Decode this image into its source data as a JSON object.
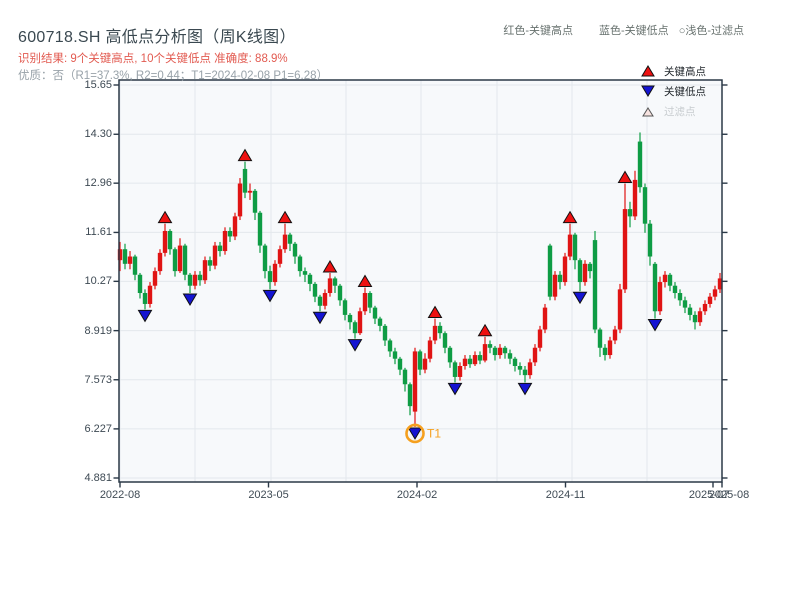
{
  "header": {
    "title": "600718.SH 高低点分析图（周K线图）",
    "subtitle_result": "识别结果: 9个关键高点, 10个关键低点  准确度: 88.9%",
    "subtitle_quality": "优质：否（R1=37.3%, R2=0.44；T1=2024-02-08 P1=6.28）",
    "color_key": {
      "high": "红色-关键高点",
      "low": "蓝色-关键低点",
      "filtered": "○浅色-过滤点"
    }
  },
  "legend": {
    "items": [
      {
        "label": "关键高点",
        "marker": "triangle-up",
        "type": "key-high"
      },
      {
        "label": "关键低点",
        "marker": "triangle-down",
        "type": "key-low"
      },
      {
        "label": "过滤点",
        "marker": "triangle-up-open",
        "type": "filtered"
      }
    ]
  },
  "colors": {
    "candle_up": "#E01414",
    "candle_down": "#0E9C44",
    "marker_high": "#EE1111",
    "marker_low": "#1414D2",
    "marker_edge": "#111111",
    "filtered_fill": "#F7E3E0",
    "filtered_edge": "#555555",
    "t1_orange": "#F5A01E",
    "grid": "#E3E8EC",
    "spine": "#2B3947",
    "plot_bg": "#F7F9FB",
    "tick_label": "#3E4A54"
  },
  "chart_data": {
    "type": "candlestick",
    "symbol": "600718.SH",
    "frequency": "周K线",
    "title": "600718.SH 高低点分析图（周K线图）",
    "key_high_count": 9,
    "key_low_count": 10,
    "accuracy": "88.9%",
    "y_ticks": [
      {
        "label": "15.65",
        "v": 15.65
      },
      {
        "label": "14.30",
        "v": 14.3
      },
      {
        "label": "12.96",
        "v": 12.96
      },
      {
        "label": "11.61",
        "v": 11.61
      },
      {
        "label": "10.27",
        "v": 10.27
      },
      {
        "label": "8.919",
        "v": 8.919
      },
      {
        "label": "7.573",
        "v": 7.573
      },
      {
        "label": "6.227",
        "v": 6.227
      },
      {
        "label": "4.881",
        "v": 4.881
      }
    ],
    "x_ticks": [
      {
        "label": "2022-08",
        "li": 0,
        "ti": 0
      },
      {
        "label": "2023-05",
        "li": 29.7,
        "ti": 29.7
      },
      {
        "label": "2024-02",
        "li": 59.4,
        "ti": 59.4
      },
      {
        "label": "2024-11",
        "li": 89.1,
        "ti": 89.1
      },
      {
        "label": "2025-07",
        "li": 117.8,
        "ti": 118.6
      },
      {
        "label": "2025-08",
        "li": 121.8,
        "ti": 120.4
      }
    ],
    "x_gridlines_idx": [
      0,
      15,
      30.2,
      45.2,
      60.2,
      75.4,
      90.4,
      105.4
    ],
    "candles": [
      [
        10.85,
        11.15,
        10.55,
        11.35
      ],
      [
        11.15,
        10.75,
        10.6,
        11.3
      ],
      [
        10.75,
        10.95,
        10.6,
        11.1
      ],
      [
        10.95,
        10.45,
        10.3,
        11.0
      ],
      [
        10.45,
        9.95,
        9.8,
        10.5
      ],
      [
        9.95,
        9.65,
        9.5,
        10.05
      ],
      [
        9.65,
        10.15,
        9.55,
        10.25
      ],
      [
        10.15,
        10.55,
        10.05,
        10.65
      ],
      [
        10.55,
        11.05,
        10.45,
        11.15
      ],
      [
        11.05,
        11.65,
        10.95,
        11.85
      ],
      [
        11.65,
        11.15,
        11.0,
        11.7
      ],
      [
        11.15,
        10.55,
        10.4,
        11.2
      ],
      [
        10.55,
        11.25,
        10.5,
        11.45
      ],
      [
        11.25,
        10.45,
        10.3,
        11.3
      ],
      [
        10.45,
        10.15,
        9.95,
        10.5
      ],
      [
        10.15,
        10.45,
        10.05,
        10.55
      ],
      [
        10.45,
        10.3,
        10.15,
        10.55
      ],
      [
        10.3,
        10.85,
        10.2,
        10.95
      ],
      [
        10.85,
        10.7,
        10.55,
        10.95
      ],
      [
        10.7,
        11.25,
        10.6,
        11.35
      ],
      [
        11.25,
        11.1,
        10.95,
        11.35
      ],
      [
        11.1,
        11.65,
        11.0,
        11.75
      ],
      [
        11.65,
        11.5,
        11.35,
        11.75
      ],
      [
        11.5,
        12.05,
        11.4,
        12.15
      ],
      [
        12.05,
        12.95,
        11.95,
        13.1
      ],
      [
        13.35,
        12.7,
        12.55,
        13.55
      ],
      [
        12.7,
        12.75,
        12.5,
        12.95
      ],
      [
        12.75,
        12.15,
        11.95,
        12.8
      ],
      [
        12.15,
        11.25,
        11.05,
        12.2
      ],
      [
        11.25,
        10.55,
        10.35,
        11.3
      ],
      [
        10.55,
        10.25,
        10.05,
        10.7
      ],
      [
        10.25,
        10.75,
        10.15,
        10.85
      ],
      [
        10.75,
        11.15,
        10.65,
        11.25
      ],
      [
        11.15,
        11.55,
        11.05,
        11.85
      ],
      [
        11.55,
        11.3,
        11.1,
        11.6
      ],
      [
        11.3,
        10.95,
        10.75,
        11.35
      ],
      [
        10.95,
        10.55,
        10.4,
        11.0
      ],
      [
        10.55,
        10.45,
        10.25,
        10.65
      ],
      [
        10.45,
        10.2,
        10.0,
        10.5
      ],
      [
        10.2,
        9.85,
        9.7,
        10.25
      ],
      [
        9.85,
        9.6,
        9.45,
        9.9
      ],
      [
        9.6,
        9.95,
        9.5,
        10.05
      ],
      [
        9.95,
        10.35,
        9.85,
        10.5
      ],
      [
        10.35,
        10.15,
        9.95,
        10.4
      ],
      [
        10.15,
        9.75,
        9.6,
        10.2
      ],
      [
        9.75,
        9.35,
        9.2,
        9.8
      ],
      [
        9.35,
        9.15,
        8.95,
        9.4
      ],
      [
        9.15,
        8.85,
        8.7,
        9.2
      ],
      [
        8.85,
        9.45,
        8.8,
        9.55
      ],
      [
        9.45,
        9.95,
        9.35,
        10.1
      ],
      [
        9.95,
        9.55,
        9.4,
        10.0
      ],
      [
        9.55,
        9.25,
        9.1,
        9.6
      ],
      [
        9.25,
        9.05,
        8.9,
        9.3
      ],
      [
        9.05,
        8.65,
        8.5,
        9.1
      ],
      [
        8.65,
        8.35,
        8.2,
        8.7
      ],
      [
        8.35,
        8.15,
        8.0,
        8.45
      ],
      [
        8.15,
        7.85,
        7.7,
        8.2
      ],
      [
        7.85,
        7.45,
        7.25,
        7.9
      ],
      [
        7.45,
        6.85,
        6.6,
        7.5
      ],
      [
        6.7,
        8.35,
        6.28,
        8.45
      ],
      [
        8.35,
        7.85,
        7.7,
        8.4
      ],
      [
        7.85,
        8.15,
        7.75,
        8.3
      ],
      [
        8.15,
        8.65,
        8.05,
        8.75
      ],
      [
        8.65,
        9.05,
        8.55,
        9.25
      ],
      [
        9.05,
        8.85,
        8.7,
        9.15
      ],
      [
        8.85,
        8.45,
        8.3,
        8.9
      ],
      [
        8.45,
        8.05,
        7.9,
        8.5
      ],
      [
        8.05,
        7.65,
        7.5,
        8.1
      ],
      [
        7.65,
        7.95,
        7.55,
        8.05
      ],
      [
        7.95,
        8.15,
        7.85,
        8.25
      ],
      [
        8.15,
        8.0,
        7.9,
        8.25
      ],
      [
        8.0,
        8.25,
        7.95,
        8.35
      ],
      [
        8.25,
        8.1,
        8.0,
        8.35
      ],
      [
        8.1,
        8.55,
        8.05,
        8.75
      ],
      [
        8.55,
        8.45,
        8.3,
        8.65
      ],
      [
        8.45,
        8.25,
        8.1,
        8.5
      ],
      [
        8.25,
        8.45,
        8.15,
        8.55
      ],
      [
        8.45,
        8.3,
        8.15,
        8.5
      ],
      [
        8.3,
        8.15,
        8.0,
        8.4
      ],
      [
        8.15,
        7.95,
        7.8,
        8.2
      ],
      [
        7.95,
        7.85,
        7.7,
        8.05
      ],
      [
        7.85,
        7.7,
        7.5,
        7.95
      ],
      [
        7.7,
        8.05,
        7.6,
        8.15
      ],
      [
        8.05,
        8.45,
        7.95,
        8.55
      ],
      [
        8.45,
        8.95,
        8.35,
        9.05
      ],
      [
        8.95,
        9.55,
        8.85,
        9.65
      ],
      [
        11.25,
        9.85,
        9.75,
        11.3
      ],
      [
        9.85,
        10.45,
        9.75,
        10.55
      ],
      [
        10.45,
        10.25,
        10.05,
        10.55
      ],
      [
        10.25,
        10.95,
        10.15,
        11.05
      ],
      [
        10.95,
        11.55,
        10.85,
        11.85
      ],
      [
        11.55,
        10.85,
        10.6,
        11.6
      ],
      [
        10.85,
        10.25,
        10.0,
        10.9
      ],
      [
        10.25,
        10.75,
        10.15,
        10.85
      ],
      [
        10.75,
        10.55,
        10.35,
        10.8
      ],
      [
        11.4,
        8.95,
        8.85,
        11.65
      ],
      [
        8.95,
        8.45,
        8.2,
        9.0
      ],
      [
        8.45,
        8.25,
        8.1,
        8.55
      ],
      [
        8.25,
        8.65,
        8.15,
        8.75
      ],
      [
        8.65,
        8.95,
        8.55,
        9.05
      ],
      [
        8.95,
        10.05,
        8.85,
        10.2
      ],
      [
        10.05,
        12.25,
        9.95,
        12.95
      ],
      [
        12.25,
        12.05,
        11.75,
        12.45
      ],
      [
        12.05,
        13.05,
        11.95,
        13.3
      ],
      [
        14.1,
        12.85,
        12.7,
        14.35
      ],
      [
        12.85,
        11.85,
        11.6,
        12.95
      ],
      [
        11.85,
        10.95,
        10.7,
        11.95
      ],
      [
        10.75,
        9.45,
        9.25,
        10.8
      ],
      [
        9.45,
        10.25,
        9.35,
        10.4
      ],
      [
        10.25,
        10.45,
        10.1,
        10.55
      ],
      [
        10.45,
        10.15,
        10.0,
        10.5
      ],
      [
        10.15,
        9.95,
        9.8,
        10.25
      ],
      [
        9.95,
        9.75,
        9.6,
        10.05
      ],
      [
        9.75,
        9.55,
        9.4,
        9.85
      ],
      [
        9.55,
        9.35,
        9.2,
        9.65
      ],
      [
        9.35,
        9.15,
        8.95,
        9.45
      ],
      [
        9.15,
        9.45,
        9.05,
        9.55
      ],
      [
        9.45,
        9.65,
        9.35,
        9.75
      ],
      [
        9.65,
        9.85,
        9.55,
        9.95
      ],
      [
        9.85,
        10.05,
        9.75,
        10.15
      ],
      [
        10.05,
        10.35,
        9.95,
        10.5
      ]
    ],
    "key_highs": [
      9,
      25,
      33,
      42,
      49,
      63,
      73,
      90,
      101
    ],
    "key_lows": [
      5,
      14,
      30,
      40,
      47,
      59,
      67,
      81,
      92,
      107
    ],
    "filtered_points": [],
    "t1": {
      "index": 59,
      "label": "T1",
      "date": "2024-02-08",
      "price": 6.28
    }
  }
}
